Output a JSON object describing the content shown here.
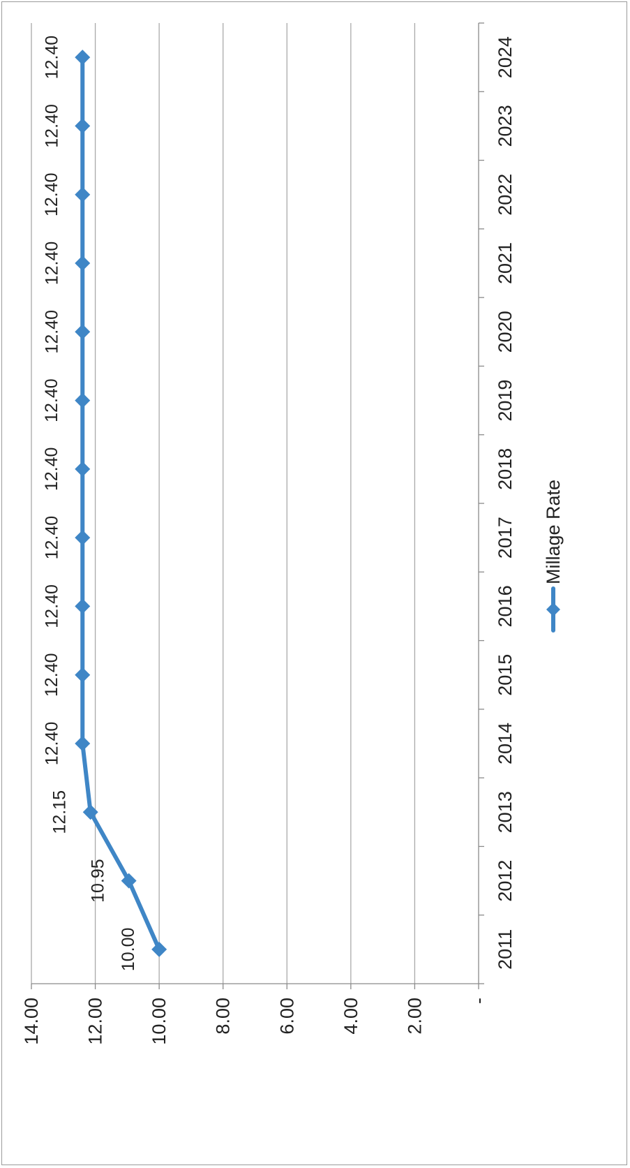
{
  "chart_data": {
    "type": "line",
    "categories": [
      "2011",
      "2012",
      "2013",
      "2014",
      "2015",
      "2016",
      "2017",
      "2018",
      "2019",
      "2020",
      "2021",
      "2022",
      "2023",
      "2024"
    ],
    "series": [
      {
        "name": "Millage Rate",
        "values": [
          10.0,
          10.95,
          12.15,
          12.4,
          12.4,
          12.4,
          12.4,
          12.4,
          12.4,
          12.4,
          12.4,
          12.4,
          12.4,
          12.4
        ],
        "labels": [
          "10.00",
          "10.95",
          "12.15",
          "12.40",
          "12.40",
          "12.40",
          "12.40",
          "12.40",
          "12.40",
          "12.40",
          "12.40",
          "12.40",
          "12.40",
          "12.40"
        ]
      }
    ],
    "ylim": [
      0,
      14
    ],
    "yticks": [
      0,
      2,
      4,
      6,
      8,
      10,
      12,
      14
    ],
    "ytick_labels": [
      "-",
      "2.00",
      "4.00",
      "6.00",
      "8.00",
      "10.00",
      "12.00",
      "14.00"
    ],
    "grid": true,
    "legend_position": "bottom",
    "orientation": "rotated 90 degrees clockwise",
    "colors": {
      "series": "#3f86c6",
      "grid": "#a9a9a9",
      "axis": "#8a8a8a"
    }
  }
}
